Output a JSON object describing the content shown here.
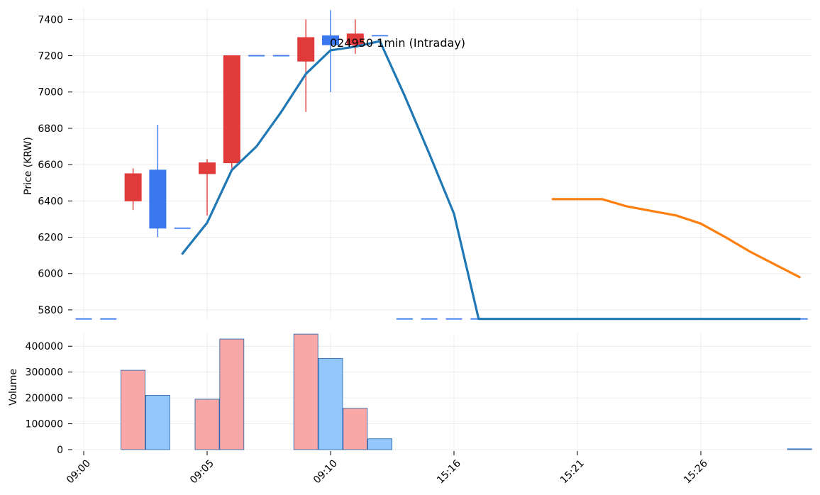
{
  "chart_data": {
    "type": "candlestick",
    "title": "024950 1min (Intraday)",
    "x_tick_labels": [
      "09:00",
      "09:05",
      "09:10",
      "15:16",
      "15:21",
      "15:26"
    ],
    "price_panel": {
      "ylabel": "Price (KRW)",
      "ylim": [
        5745,
        7460
      ],
      "y_ticks": [
        5800,
        6000,
        6200,
        6400,
        6600,
        6800,
        7000,
        7200,
        7400
      ],
      "candles": [
        {
          "slot": 0,
          "open": 5750,
          "high": 5750,
          "low": 5750,
          "close": 5750,
          "direction": "down"
        },
        {
          "slot": 1,
          "open": 5750,
          "high": 5750,
          "low": 5750,
          "close": 5750,
          "direction": "down"
        },
        {
          "slot": 2,
          "open": 6400,
          "high": 6580,
          "low": 6350,
          "close": 6550,
          "direction": "up"
        },
        {
          "slot": 3,
          "open": 6570,
          "high": 6820,
          "low": 6200,
          "close": 6250,
          "direction": "down"
        },
        {
          "slot": 4,
          "open": 6250,
          "high": 6250,
          "low": 6250,
          "close": 6250,
          "direction": "down"
        },
        {
          "slot": 5,
          "open": 6550,
          "high": 6630,
          "low": 6320,
          "close": 6610,
          "direction": "up"
        },
        {
          "slot": 6,
          "open": 6610,
          "high": 7200,
          "low": 6580,
          "close": 7200,
          "direction": "up"
        },
        {
          "slot": 7,
          "open": 7200,
          "high": 7200,
          "low": 7200,
          "close": 7200,
          "direction": "down"
        },
        {
          "slot": 8,
          "open": 7200,
          "high": 7200,
          "low": 7200,
          "close": 7200,
          "direction": "down"
        },
        {
          "slot": 9,
          "open": 7170,
          "high": 7400,
          "low": 6890,
          "close": 7300,
          "direction": "up"
        },
        {
          "slot": 10,
          "open": 7310,
          "high": 7450,
          "low": 7000,
          "close": 7260,
          "direction": "down"
        },
        {
          "slot": 11,
          "open": 7260,
          "high": 7400,
          "low": 7210,
          "close": 7320,
          "direction": "up"
        },
        {
          "slot": 12,
          "open": 7310,
          "high": 7310,
          "low": 7310,
          "close": 7310,
          "direction": "down"
        },
        {
          "slot": 13,
          "open": 5750,
          "high": 5750,
          "low": 5750,
          "close": 5750,
          "direction": "down"
        },
        {
          "slot": 14,
          "open": 5750,
          "high": 5750,
          "low": 5750,
          "close": 5750,
          "direction": "down"
        },
        {
          "slot": 15,
          "open": 5750,
          "high": 5750,
          "low": 5750,
          "close": 5750,
          "direction": "down"
        },
        {
          "slot": 16,
          "open": 5750,
          "high": 5750,
          "low": 5750,
          "close": 5750,
          "direction": "down"
        },
        {
          "slot": 17,
          "open": 5750,
          "high": 5750,
          "low": 5750,
          "close": 5750,
          "direction": "down"
        },
        {
          "slot": 18,
          "open": 5750,
          "high": 5750,
          "low": 5750,
          "close": 5750,
          "direction": "down"
        },
        {
          "slot": 19,
          "open": 5750,
          "high": 5750,
          "low": 5750,
          "close": 5750,
          "direction": "down"
        },
        {
          "slot": 20,
          "open": 5750,
          "high": 5750,
          "low": 5750,
          "close": 5750,
          "direction": "down"
        },
        {
          "slot": 21,
          "open": 5750,
          "high": 5750,
          "low": 5750,
          "close": 5750,
          "direction": "down"
        },
        {
          "slot": 22,
          "open": 5750,
          "high": 5750,
          "low": 5750,
          "close": 5750,
          "direction": "down"
        },
        {
          "slot": 23,
          "open": 5750,
          "high": 5750,
          "low": 5750,
          "close": 5750,
          "direction": "down"
        },
        {
          "slot": 24,
          "open": 5750,
          "high": 5750,
          "low": 5750,
          "close": 5750,
          "direction": "down"
        },
        {
          "slot": 25,
          "open": 5750,
          "high": 5750,
          "low": 5750,
          "close": 5750,
          "direction": "down"
        },
        {
          "slot": 26,
          "open": 5750,
          "high": 5750,
          "low": 5750,
          "close": 5750,
          "direction": "down"
        },
        {
          "slot": 27,
          "open": 5750,
          "high": 5750,
          "low": 5750,
          "close": 5750,
          "direction": "down"
        },
        {
          "slot": 28,
          "open": 5750,
          "high": 5750,
          "low": 5750,
          "close": 5750,
          "direction": "down"
        },
        {
          "slot": 29,
          "open": 5750,
          "high": 5750,
          "low": 5750,
          "close": 5750,
          "direction": "down"
        }
      ],
      "lines": [
        {
          "color": "#1f77b4",
          "slots": [
            4,
            5,
            6,
            7,
            8,
            9,
            10,
            11,
            12,
            13,
            14,
            15,
            16,
            17,
            18,
            19,
            20,
            21,
            22,
            23,
            24,
            25,
            26,
            27,
            28,
            29
          ],
          "values": [
            6110,
            6280,
            6570,
            6700,
            6890,
            7100,
            7230,
            7250,
            7280,
            6980,
            6660,
            6330,
            5750,
            5750,
            5750,
            5750,
            5750,
            5750,
            5750,
            5750,
            5750,
            5750,
            5750,
            5750,
            5750,
            5750
          ]
        },
        {
          "color": "#ff7f0e",
          "slots": [
            19,
            20,
            21,
            22,
            23,
            24,
            25,
            26,
            27,
            28,
            29
          ],
          "values": [
            6410,
            6410,
            6410,
            6370,
            6345,
            6320,
            6275,
            6200,
            6120,
            6050,
            5980
          ]
        }
      ]
    },
    "volume_panel": {
      "ylabel": "Volume",
      "ylim": [
        0,
        450000
      ],
      "y_ticks": [
        0,
        100000,
        200000,
        300000,
        400000
      ],
      "bars": [
        {
          "slot": 2,
          "value": 307000,
          "direction": "up"
        },
        {
          "slot": 3,
          "value": 210000,
          "direction": "down"
        },
        {
          "slot": 5,
          "value": 195000,
          "direction": "up"
        },
        {
          "slot": 6,
          "value": 428000,
          "direction": "up"
        },
        {
          "slot": 9,
          "value": 447000,
          "direction": "up"
        },
        {
          "slot": 10,
          "value": 353000,
          "direction": "down"
        },
        {
          "slot": 11,
          "value": 160000,
          "direction": "up"
        },
        {
          "slot": 12,
          "value": 42000,
          "direction": "down"
        },
        {
          "slot": 29,
          "value": 3000,
          "direction": "down"
        }
      ]
    },
    "colors": {
      "up_candle": "#e03a3a",
      "down_candle": "#3b78f0",
      "up_volume": "#f9a7a7",
      "down_volume": "#93c6fb",
      "volume_edge": "#1f5fa8",
      "grid": "#ececec"
    },
    "grid": true
  }
}
